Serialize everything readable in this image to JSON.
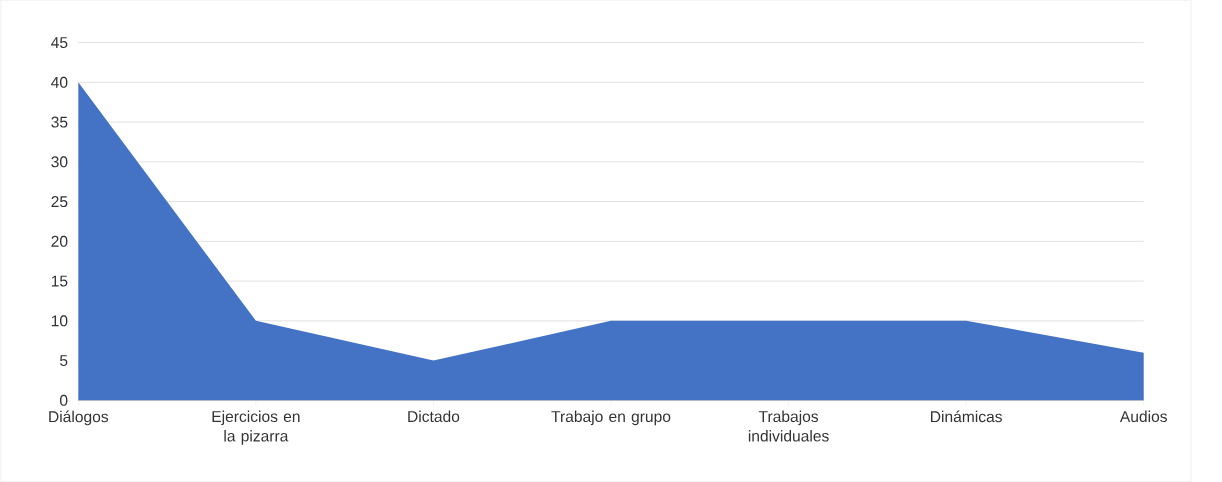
{
  "chart_data": {
    "type": "area",
    "categories": [
      "Diálogos",
      "Ejercicios en la pizarra",
      "Dictado",
      "Trabajo en grupo",
      "Trabajos individuales",
      "Dinámicas",
      "Audios"
    ],
    "values": [
      40,
      10,
      5,
      10,
      10,
      10,
      6
    ],
    "color": "#4472c4",
    "ylim": [
      0,
      45
    ],
    "yticks": [
      0,
      5,
      10,
      15,
      20,
      25,
      30,
      35,
      40,
      45
    ],
    "grid": "y"
  }
}
